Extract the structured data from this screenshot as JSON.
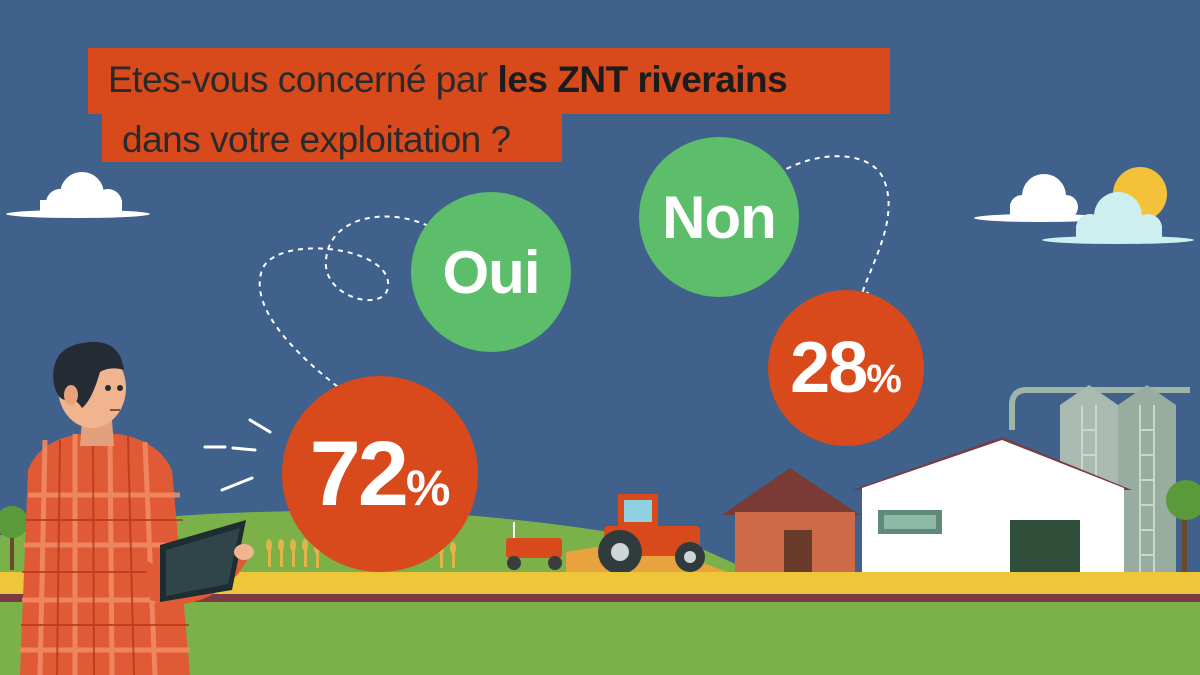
{
  "chart_data": {
    "type": "pie",
    "title_regular_1": "Etes-vous concerné par ",
    "title_bold": "les ZNT riverains",
    "title_regular_2": "dans votre exploitation ?",
    "categories": [
      "Oui",
      "Non"
    ],
    "values": [
      72,
      28
    ],
    "value_labels": [
      "72",
      "28"
    ],
    "unit": "%"
  },
  "colors": {
    "background": "#3f618b",
    "accent_orange": "#d84a1b",
    "answer_green": "#5cbd6a"
  }
}
